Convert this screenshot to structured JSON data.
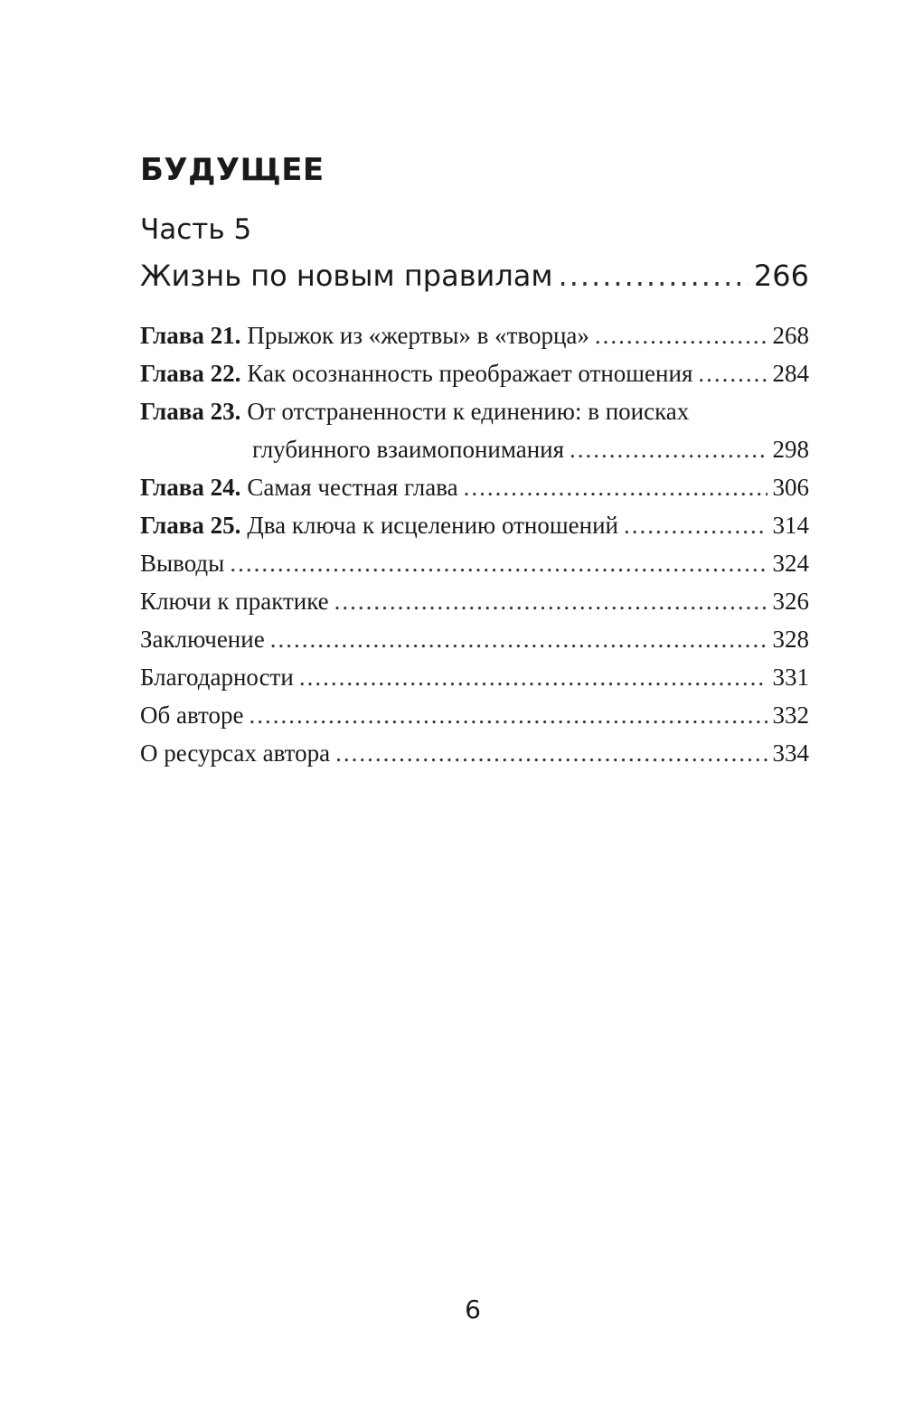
{
  "section_title": "БУДУЩЕЕ",
  "part": {
    "label": "Часть 5",
    "title": "Жизнь по новым правилам",
    "page": "266"
  },
  "chapters": [
    {
      "label": "Глава 21.",
      "title": "Прыжок из «жертвы» в «творца»",
      "page": "268"
    },
    {
      "label": "Глава 22.",
      "title": "Как осознанность преображает отношения",
      "page": "284"
    },
    {
      "label": "Глава 23.",
      "title": "От отстраненности к единению: в поисках",
      "title_cont": "глубинного взаимопонимания",
      "page": "298"
    },
    {
      "label": "Глава 24.",
      "title": "Самая честная глава",
      "page": "306"
    },
    {
      "label": "Глава 25.",
      "title": "Два ключа к исцелению отношений",
      "page": "314"
    }
  ],
  "entries": [
    {
      "title": "Выводы",
      "page": "324"
    },
    {
      "title": "Ключи к практике",
      "page": "326"
    },
    {
      "title": "Заключение",
      "page": "328"
    },
    {
      "title": "Благодарности",
      "page": "331"
    },
    {
      "title": "Об авторе",
      "page": "332"
    },
    {
      "title": "О ресурсах автора",
      "page": "334"
    }
  ],
  "page_number": "6"
}
